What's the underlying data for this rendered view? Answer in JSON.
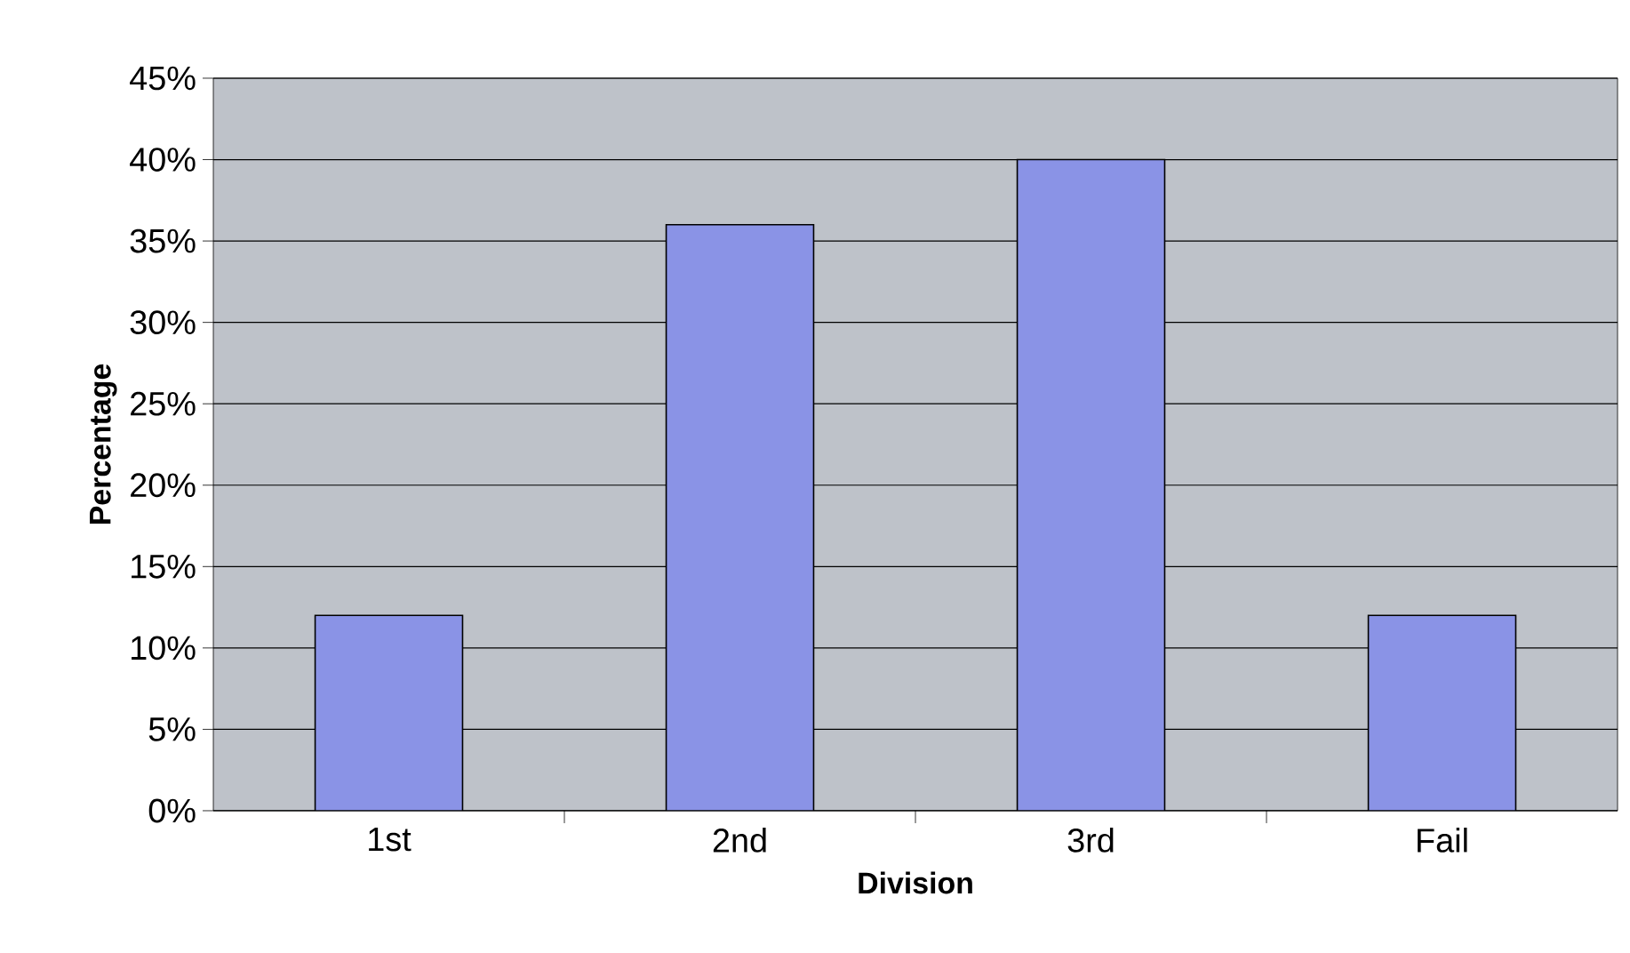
{
  "chart_data": {
    "type": "bar",
    "xlabel": "Division",
    "ylabel": "Percentage",
    "categories": [
      "1st",
      "2nd",
      "3rd",
      "Fail"
    ],
    "values": [
      12,
      36,
      40,
      12
    ],
    "color": "#8a93e6",
    "ylim": [
      0,
      45
    ],
    "yticks": [
      {
        "value": 0,
        "label": "0%"
      },
      {
        "value": 5,
        "label": "5%"
      },
      {
        "value": 10,
        "label": "10%"
      },
      {
        "value": 15,
        "label": "15%"
      },
      {
        "value": 20,
        "label": "20%"
      },
      {
        "value": 25,
        "label": "25%"
      },
      {
        "value": 30,
        "label": "30%"
      },
      {
        "value": 35,
        "label": "35%"
      },
      {
        "value": 40,
        "label": "40%"
      },
      {
        "value": 45,
        "label": "45%"
      }
    ],
    "grid": "y"
  }
}
